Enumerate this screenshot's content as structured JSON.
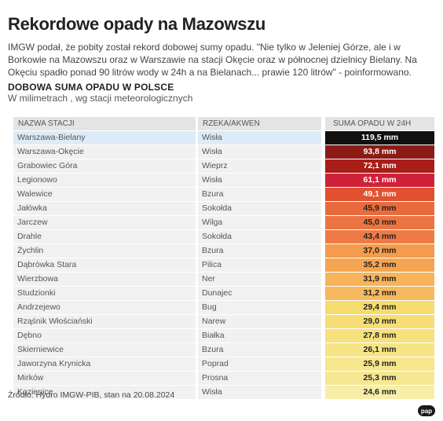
{
  "title": "Rekordowe opady na Mazowszu",
  "lead": "IMGW podał, że pobity został rekord dobowej sumy opadu. \"Nie tylko w Jeleniej Górze, ale i w Borkowie na Mazowszu oraz w Warszawie na stacji Okęcie oraz w północnej dzielnicy Bielany. Na Okęciu spadło ponad 90 litrów wody w 24h a na Bielanach... prawie 120 litrów\" - poinformowano.",
  "subtitle": "DOBOWA SUMA OPADU W POLSCE",
  "unit_line": "W milimetrach , wg stacji meteorologicznych",
  "source": "Źródło: Hydro IMGW-PIB, stan na 20.08.2024",
  "logo": "pap",
  "chart_data": {
    "type": "table",
    "columns": [
      "NAZWA STACJI",
      "RZEKA/AKWEN",
      "SUMA OPADU W 24H"
    ],
    "rows": [
      {
        "station": "Warszawa-Bielany",
        "river": "Wisła",
        "value": 119.5,
        "label": "119,5 mm",
        "color": "#111111",
        "text_color": "#ffffff",
        "highlight": true
      },
      {
        "station": "Warszawa-Okęcie",
        "river": "Wisła",
        "value": 93.8,
        "label": "93,8 mm",
        "color": "#8c1b16",
        "text_color": "#ffffff"
      },
      {
        "station": "Grabowiec Góra",
        "river": "Wieprz",
        "value": 72.1,
        "label": "72,1 mm",
        "color": "#a81d18",
        "text_color": "#ffffff"
      },
      {
        "station": "Legionowo",
        "river": "Wisła",
        "value": 61.1,
        "label": "61,1 mm",
        "color": "#d0213a",
        "text_color": "#ffffff"
      },
      {
        "station": "Walewice",
        "river": "Bzura",
        "value": 49.1,
        "label": "49,1 mm",
        "color": "#e0512f",
        "text_color": "#ffffff"
      },
      {
        "station": "Jałówka",
        "river": "Sokołda",
        "value": 45.9,
        "label": "45,9 mm",
        "color": "#e96b3d",
        "text_color": "#222222"
      },
      {
        "station": "Jarczew",
        "river": "Wilga",
        "value": 45.0,
        "label": "45,0 mm",
        "color": "#ec7443",
        "text_color": "#222222"
      },
      {
        "station": "Drahle",
        "river": "Sokołda",
        "value": 43.4,
        "label": "43,4 mm",
        "color": "#ee7b46",
        "text_color": "#222222"
      },
      {
        "station": "Żychlin",
        "river": "Bzura",
        "value": 37.0,
        "label": "37,0 mm",
        "color": "#f49b4c",
        "text_color": "#222222"
      },
      {
        "station": "Dąbrówka Stara",
        "river": "Pilica",
        "value": 35.2,
        "label": "35,2 mm",
        "color": "#f5a552",
        "text_color": "#222222"
      },
      {
        "station": "Wierzbowa",
        "river": "Ner",
        "value": 31.9,
        "label": "31,9 mm",
        "color": "#f7b45a",
        "text_color": "#222222"
      },
      {
        "station": "Studzionki",
        "river": "Dunajec",
        "value": 31.2,
        "label": "31,2 mm",
        "color": "#f7b95d",
        "text_color": "#222222"
      },
      {
        "station": "Andrzejewo",
        "river": "Bug",
        "value": 29.4,
        "label": "29,4 mm",
        "color": "#f6dc6e",
        "text_color": "#222222"
      },
      {
        "station": "Rząśnik Włościański",
        "river": "Narew",
        "value": 29.0,
        "label": "29,0 mm",
        "color": "#f6de74",
        "text_color": "#222222"
      },
      {
        "station": "Dębno",
        "river": "Białka",
        "value": 27.8,
        "label": "27,8 mm",
        "color": "#f6e17c",
        "text_color": "#222222"
      },
      {
        "station": "Skierniewice",
        "river": "Bzura",
        "value": 26.1,
        "label": "26,1 mm",
        "color": "#f6e486",
        "text_color": "#222222"
      },
      {
        "station": "Jaworzyna Krynicka",
        "river": "Poprad",
        "value": 25.9,
        "label": "25,9 mm",
        "color": "#f6e68c",
        "text_color": "#222222"
      },
      {
        "station": "Mirków",
        "river": "Prosna",
        "value": 25.3,
        "label": "25,3 mm",
        "color": "#f6e893",
        "text_color": "#222222"
      },
      {
        "station": "Kozienice",
        "river": "Wisła",
        "value": 24.6,
        "label": "24,6 mm",
        "color": "#f6eea9",
        "text_color": "#222222"
      }
    ]
  }
}
